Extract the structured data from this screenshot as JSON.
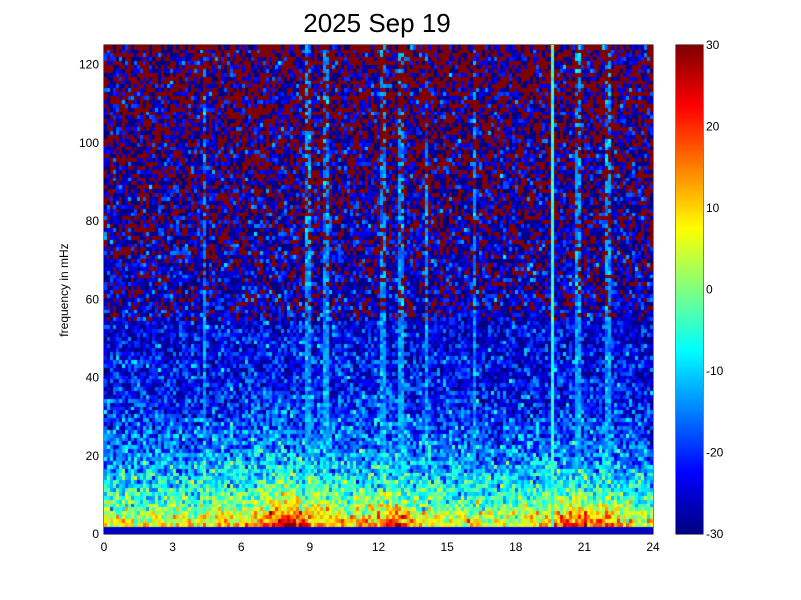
{
  "chart_data": {
    "type": "heatmap",
    "title": "2025 Sep 19",
    "xlabel": "",
    "ylabel": "frequency in mHz",
    "x_ticks": [
      "0",
      "3",
      "6",
      "9",
      "12",
      "15",
      "18",
      "21",
      "24"
    ],
    "y_ticks": [
      "0",
      "20",
      "40",
      "60",
      "80",
      "100",
      "120"
    ],
    "x_range": [
      0,
      24
    ],
    "y_range": [
      0,
      125
    ],
    "colorbar": {
      "ticks": [
        "30",
        "20",
        "10",
        "0",
        "-10",
        "-20",
        "-30"
      ],
      "range": [
        -30,
        30
      ],
      "colormap": "jet"
    },
    "features": {
      "low_freq_band_power": 15,
      "strong_vertical_line_hours": [
        19.6
      ],
      "vertical_line_hours": [
        4.4,
        8.9,
        9.7,
        12.2,
        13.0,
        14.1,
        16.2,
        20.7,
        22.0
      ],
      "hot_spot_hours": [
        7.5,
        8.3,
        12.7,
        19.8,
        20.8,
        22.0
      ]
    }
  }
}
